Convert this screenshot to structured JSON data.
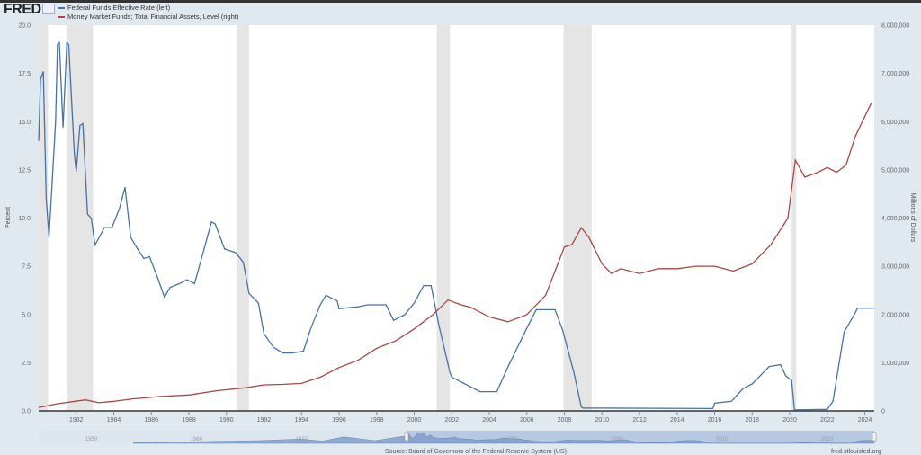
{
  "header": {
    "logo": "FRED",
    "logo_icon": "chart-line-icon"
  },
  "chart_data": {
    "type": "line",
    "title": "",
    "ylabel_left": "Percent",
    "ylabel_right": "Millions of Dollars",
    "ylim_left": [
      0,
      20
    ],
    "ylim_right": [
      0,
      8000000
    ],
    "xlim": [
      1980.0,
      2024.5
    ],
    "left_ticks": [
      "0.0",
      "2.5",
      "5.0",
      "7.5",
      "10.0",
      "12.5",
      "15.0",
      "17.5",
      "20.0"
    ],
    "left_tick_values": [
      0,
      2.5,
      5,
      7.5,
      10,
      12.5,
      15,
      17.5,
      20
    ],
    "right_ticks": [
      "0",
      "1,000,000",
      "2,000,000",
      "3,000,000",
      "4,000,000",
      "5,000,000",
      "6,000,000",
      "7,000,000",
      "8,000,000"
    ],
    "right_tick_values": [
      0,
      1000000,
      2000000,
      3000000,
      4000000,
      5000000,
      6000000,
      7000000,
      8000000
    ],
    "x_ticks": [
      "1982",
      "1984",
      "1986",
      "1988",
      "1990",
      "1992",
      "1994",
      "1996",
      "1998",
      "2000",
      "2002",
      "2004",
      "2006",
      "2008",
      "2010",
      "2012",
      "2014",
      "2016",
      "2018",
      "2020",
      "2022",
      "2024"
    ],
    "x_tick_values": [
      1982,
      1984,
      1986,
      1988,
      1990,
      1992,
      1994,
      1996,
      1998,
      2000,
      2002,
      2004,
      2006,
      2008,
      2010,
      2012,
      2014,
      2016,
      2018,
      2020,
      2022,
      2024
    ],
    "recessions": [
      [
        1980.0,
        1980.5
      ],
      [
        1981.5,
        1982.9
      ],
      [
        1990.55,
        1991.2
      ],
      [
        2001.2,
        2001.9
      ],
      [
        2007.95,
        2009.45
      ],
      [
        2020.1,
        2020.35
      ]
    ],
    "legend_placement": "top-left",
    "series": [
      {
        "name": "Federal Funds Effective Rate (left)",
        "color": "#4572a7",
        "axis": "left",
        "points": [
          [
            1980.0,
            14.0
          ],
          [
            1980.1,
            17.2
          ],
          [
            1980.25,
            17.6
          ],
          [
            1980.4,
            11
          ],
          [
            1980.55,
            9.0
          ],
          [
            1980.9,
            15
          ],
          [
            1981.0,
            19.0
          ],
          [
            1981.1,
            19.1
          ],
          [
            1981.3,
            14.7
          ],
          [
            1981.5,
            19.1
          ],
          [
            1981.6,
            19.0
          ],
          [
            1981.9,
            13.3
          ],
          [
            1982.0,
            12.4
          ],
          [
            1982.2,
            14.8
          ],
          [
            1982.35,
            14.9
          ],
          [
            1982.6,
            10.2
          ],
          [
            1982.8,
            10.0
          ],
          [
            1983.0,
            8.6
          ],
          [
            1983.5,
            9.5
          ],
          [
            1983.9,
            9.5
          ],
          [
            1984.3,
            10.5
          ],
          [
            1984.6,
            11.6
          ],
          [
            1984.9,
            9.0
          ],
          [
            1985.2,
            8.5
          ],
          [
            1985.6,
            7.9
          ],
          [
            1985.9,
            8.0
          ],
          [
            1986.3,
            7.0
          ],
          [
            1986.7,
            5.9
          ],
          [
            1987.0,
            6.4
          ],
          [
            1987.5,
            6.6
          ],
          [
            1987.9,
            6.8
          ],
          [
            1988.3,
            6.6
          ],
          [
            1988.7,
            8.0
          ],
          [
            1989.2,
            9.8
          ],
          [
            1989.4,
            9.7
          ],
          [
            1989.9,
            8.4
          ],
          [
            1990.5,
            8.2
          ],
          [
            1990.9,
            7.7
          ],
          [
            1991.2,
            6.1
          ],
          [
            1991.7,
            5.6
          ],
          [
            1992.0,
            4.0
          ],
          [
            1992.5,
            3.3
          ],
          [
            1993.0,
            3.0
          ],
          [
            1993.5,
            3.0
          ],
          [
            1994.1,
            3.1
          ],
          [
            1994.5,
            4.3
          ],
          [
            1995.0,
            5.5
          ],
          [
            1995.3,
            6.0
          ],
          [
            1995.9,
            5.7
          ],
          [
            1996.0,
            5.3
          ],
          [
            1997.0,
            5.4
          ],
          [
            1997.5,
            5.5
          ],
          [
            1998.5,
            5.5
          ],
          [
            1998.9,
            4.7
          ],
          [
            1999.5,
            5.0
          ],
          [
            2000.0,
            5.6
          ],
          [
            2000.5,
            6.5
          ],
          [
            2000.9,
            6.5
          ],
          [
            2001.3,
            4.5
          ],
          [
            2001.9,
            2.0
          ],
          [
            2002.0,
            1.75
          ],
          [
            2002.9,
            1.3
          ],
          [
            2003.5,
            1.0
          ],
          [
            2004.4,
            1.0
          ],
          [
            2005.0,
            2.3
          ],
          [
            2006.0,
            4.3
          ],
          [
            2006.5,
            5.25
          ],
          [
            2007.5,
            5.25
          ],
          [
            2007.9,
            4.2
          ],
          [
            2008.5,
            2.0
          ],
          [
            2008.9,
            0.2
          ],
          [
            2009.0,
            0.15
          ],
          [
            2015.9,
            0.12
          ],
          [
            2016.0,
            0.4
          ],
          [
            2016.9,
            0.5
          ],
          [
            2017.5,
            1.15
          ],
          [
            2018.0,
            1.4
          ],
          [
            2018.9,
            2.3
          ],
          [
            2019.5,
            2.4
          ],
          [
            2019.8,
            1.8
          ],
          [
            2020.1,
            1.6
          ],
          [
            2020.25,
            0.05
          ],
          [
            2022.0,
            0.08
          ],
          [
            2022.3,
            0.5
          ],
          [
            2022.9,
            4.1
          ],
          [
            2023.5,
            5.1
          ],
          [
            2023.6,
            5.33
          ],
          [
            2024.5,
            5.33
          ]
        ]
      },
      {
        "name": "Money Market Funds; Total Financial Assets, Level (right)",
        "color": "#aa4643",
        "axis": "right",
        "points": [
          [
            1980.0,
            70000
          ],
          [
            1981,
            150000
          ],
          [
            1982.5,
            230000
          ],
          [
            1983.2,
            170000
          ],
          [
            1984,
            200000
          ],
          [
            1985,
            250000
          ],
          [
            1986.5,
            300000
          ],
          [
            1988,
            330000
          ],
          [
            1989.5,
            420000
          ],
          [
            1991,
            480000
          ],
          [
            1992,
            540000
          ],
          [
            1993,
            550000
          ],
          [
            1994,
            570000
          ],
          [
            1995,
            700000
          ],
          [
            1996,
            900000
          ],
          [
            1997,
            1050000
          ],
          [
            1998,
            1300000
          ],
          [
            1999,
            1450000
          ],
          [
            2000,
            1700000
          ],
          [
            2001,
            2000000
          ],
          [
            2001.8,
            2300000
          ],
          [
            2002.5,
            2200000
          ],
          [
            2003,
            2150000
          ],
          [
            2004,
            1950000
          ],
          [
            2005,
            1850000
          ],
          [
            2006,
            2000000
          ],
          [
            2007,
            2400000
          ],
          [
            2008,
            3400000
          ],
          [
            2008.4,
            3450000
          ],
          [
            2008.9,
            3800000
          ],
          [
            2009.3,
            3600000
          ],
          [
            2010,
            3050000
          ],
          [
            2010.5,
            2850000
          ],
          [
            2011,
            2950000
          ],
          [
            2012,
            2850000
          ],
          [
            2013,
            2950000
          ],
          [
            2014,
            2950000
          ],
          [
            2015,
            3000000
          ],
          [
            2016,
            3000000
          ],
          [
            2017,
            2900000
          ],
          [
            2018,
            3050000
          ],
          [
            2019,
            3450000
          ],
          [
            2019.9,
            4000000
          ],
          [
            2020.3,
            5200000
          ],
          [
            2020.8,
            4850000
          ],
          [
            2021.5,
            4950000
          ],
          [
            2022,
            5050000
          ],
          [
            2022.5,
            4950000
          ],
          [
            2023,
            5100000
          ],
          [
            2023.5,
            5700000
          ],
          [
            2024.3,
            6350000
          ],
          [
            2024.4,
            6400000
          ]
        ]
      }
    ],
    "navigator": {
      "labels": [
        "1950",
        "1960",
        "1970",
        "1980",
        "1990",
        "2000",
        "2010",
        "2020"
      ],
      "label_values": [
        1950,
        1960,
        1970,
        1980,
        1990,
        2000,
        2010,
        2020
      ],
      "range": [
        1945,
        2024.5
      ],
      "selected": [
        1980.0,
        2024.5
      ]
    }
  },
  "footer": {
    "source": "Source: Board of Governors of the Federal Reserve System (US)",
    "site": "fred.stlouisfed.org"
  }
}
